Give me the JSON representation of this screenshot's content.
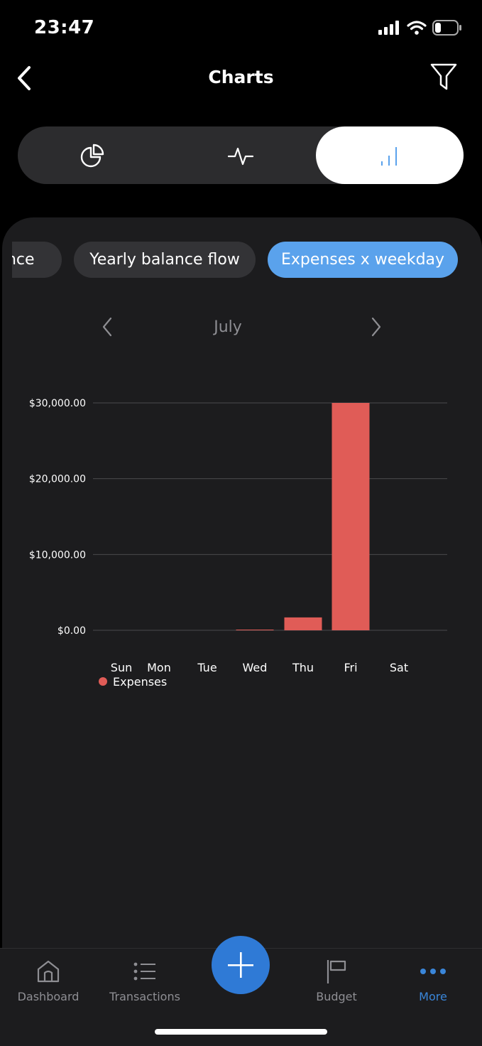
{
  "status_bar": {
    "time": "23:47"
  },
  "nav": {
    "title": "Charts"
  },
  "segments": [
    {
      "icon": "pie-chart-icon"
    },
    {
      "icon": "pulse-line-icon"
    },
    {
      "icon": "bar-chart-icon",
      "selected": true
    }
  ],
  "chips": [
    {
      "label": "ance"
    },
    {
      "label": "Yearly balance flow"
    },
    {
      "label": "Expenses x weekday",
      "selected": true
    }
  ],
  "month": {
    "label": "July"
  },
  "chart_data": {
    "type": "bar",
    "categories": [
      "Sun",
      "Mon",
      "Tue",
      "Wed",
      "Thu",
      "Fri",
      "Sat"
    ],
    "series": [
      {
        "name": "Expenses",
        "color": "#e05c57",
        "values": [
          0,
          0,
          0,
          50,
          1700,
          30000,
          0
        ]
      }
    ],
    "y_ticks": [
      {
        "value": 30000,
        "label": "$30,000.00"
      },
      {
        "value": 20000,
        "label": "$20,000.00"
      },
      {
        "value": 10000,
        "label": "$10,000.00"
      },
      {
        "value": 0,
        "label": "$0.00"
      }
    ],
    "ylim": [
      0,
      30000
    ],
    "grid": true,
    "legend": "bottom-left"
  },
  "tabbar": {
    "items": [
      {
        "label": "Dashboard",
        "icon": "home-icon"
      },
      {
        "label": "Transactions",
        "icon": "list-icon"
      },
      {
        "label": "Budget",
        "icon": "flag-icon"
      },
      {
        "label": "More",
        "icon": "more-dots-icon",
        "active": true
      }
    ],
    "fab_icon": "plus-icon"
  },
  "colors": {
    "accent": "#5aa2ec",
    "fab": "#2f7ad6",
    "expense": "#e05c57",
    "card_bg": "#1c1c1e"
  }
}
